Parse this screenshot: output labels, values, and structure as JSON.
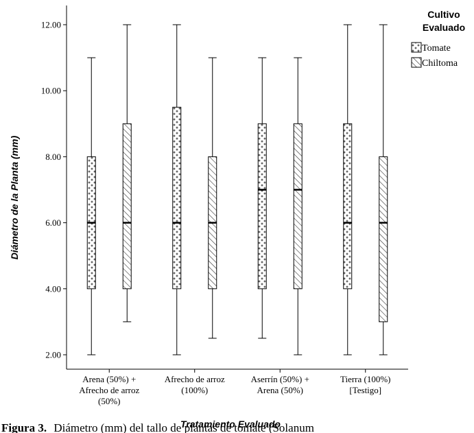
{
  "chart_data": {
    "type": "boxplot",
    "xlabel": "Tratamiento Evaluado",
    "ylabel": "Diámetro de la Planta (mm)",
    "ylim": [
      1.5,
      12.6
    ],
    "yticks": [
      "2.00",
      "4.00",
      "6.00",
      "8.00",
      "10.00",
      "12.00"
    ],
    "ytick_values": [
      2,
      4,
      6,
      8,
      10,
      12
    ],
    "categories": [
      [
        "Arena (50%) +",
        "Afrecho de arroz",
        "(50%)"
      ],
      [
        "Afrecho de arroz",
        "(100%)"
      ],
      [
        "Aserrín (50%) +",
        "Arena (50%)"
      ],
      [
        "Tierra (100%)",
        "[Testigo]"
      ]
    ],
    "legend": {
      "title": [
        "Cultivo",
        "Evaluado"
      ],
      "position": "top-right"
    },
    "series": [
      {
        "name": "Tomate",
        "pattern": "crosses",
        "boxes": [
          {
            "min": 2,
            "q1": 4,
            "median": 6,
            "q3": 8,
            "max": 11
          },
          {
            "min": 2,
            "q1": 4,
            "median": 6,
            "q3": 9.5,
            "max": 12
          },
          {
            "min": 2.5,
            "q1": 4,
            "median": 7,
            "q3": 9,
            "max": 11
          },
          {
            "min": 2,
            "q1": 4,
            "median": 6,
            "q3": 9,
            "max": 12
          }
        ]
      },
      {
        "name": "Chiltoma",
        "pattern": "diagonal",
        "boxes": [
          {
            "min": 3,
            "q1": 4,
            "median": 6,
            "q3": 9,
            "max": 12
          },
          {
            "min": 2.5,
            "q1": 4,
            "median": 6,
            "q3": 8,
            "max": 11
          },
          {
            "min": 2,
            "q1": 4,
            "median": 7,
            "q3": 9,
            "max": 11
          },
          {
            "min": 2,
            "q1": 3,
            "median": 6,
            "q3": 8,
            "max": 12
          }
        ]
      }
    ]
  },
  "caption": {
    "label": "Figura 3.",
    "text": "Diámetro (mm) del tallo de plantas de tomate (Solanum"
  }
}
